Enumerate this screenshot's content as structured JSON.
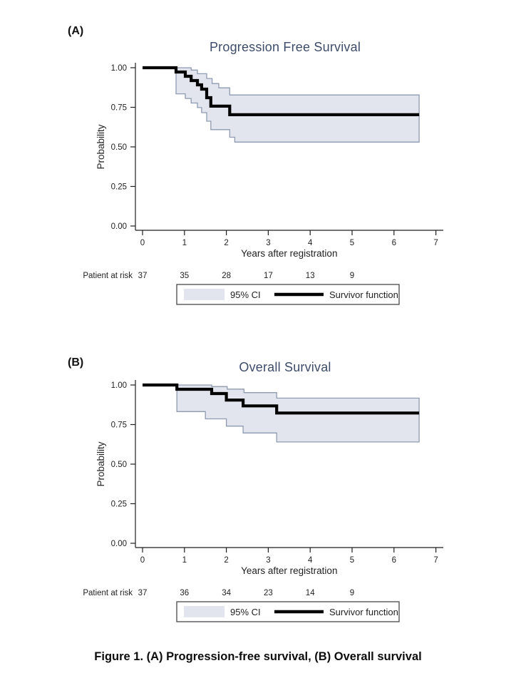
{
  "caption": "Figure 1. (A) Progression-free survival, (B) Overall survival",
  "colors": {
    "title_color": "#3e4c69",
    "band_fill": "#e2e5ed",
    "ci_line": "#8f9bb0",
    "survivor_line": "#000000",
    "axis_color": "#1f1f1f",
    "text_color": "#1f1f1f",
    "legend_border": "#3a3a3a"
  },
  "chart_data": [
    {
      "type": "line",
      "subtype": "kaplan-meier-step",
      "panel_label": "(A)",
      "title": "Progression Free Survival",
      "xlabel": "Years after registration",
      "ylabel": "Probability",
      "xlim": [
        0,
        7
      ],
      "ylim": [
        0,
        1
      ],
      "x_ticks": [
        0,
        1,
        2,
        3,
        4,
        5,
        6,
        7
      ],
      "y_ticks": [
        0,
        0.25,
        0.5,
        0.75,
        1
      ],
      "y_tick_labels": [
        "0.00",
        "0.25",
        "0.50",
        "0.75",
        "1.00"
      ],
      "end_time": 6.6,
      "grid": false,
      "legend": {
        "ci_label": "95% CI",
        "survivor_label": "Survivor function",
        "position": "below"
      },
      "risk_table": {
        "label": "Patient at risk",
        "times": [
          0,
          1,
          2,
          3,
          4,
          5
        ],
        "counts": [
          37,
          35,
          28,
          17,
          13,
          9
        ]
      },
      "series": [
        {
          "name": "Survivor function",
          "role": "survivor",
          "start": [
            0,
            1.0
          ],
          "drops": [
            [
              0.8,
              0.973
            ],
            [
              1.02,
              0.946
            ],
            [
              1.16,
              0.919
            ],
            [
              1.31,
              0.892
            ],
            [
              1.41,
              0.865
            ],
            [
              1.53,
              0.811
            ],
            [
              1.63,
              0.757
            ],
            [
              2.08,
              0.703
            ]
          ]
        },
        {
          "name": "95% CI upper",
          "role": "ci_upper",
          "start": [
            0.8,
            1.0
          ],
          "drops": [
            [
              1.16,
              0.985
            ],
            [
              1.31,
              0.962
            ],
            [
              1.53,
              0.932
            ],
            [
              1.66,
              0.9
            ],
            [
              1.82,
              0.873
            ],
            [
              2.08,
              0.828
            ]
          ]
        },
        {
          "name": "95% CI lower",
          "role": "ci_lower",
          "start": [
            0.8,
            0.835
          ],
          "drops": [
            [
              1.02,
              0.806
            ],
            [
              1.16,
              0.777
            ],
            [
              1.31,
              0.748
            ],
            [
              1.41,
              0.716
            ],
            [
              1.53,
              0.662
            ],
            [
              1.63,
              0.609
            ],
            [
              2.08,
              0.561
            ],
            [
              2.2,
              0.53
            ]
          ]
        }
      ]
    },
    {
      "type": "line",
      "subtype": "kaplan-meier-step",
      "panel_label": "(B)",
      "title": "Overall Survival",
      "xlabel": "Years after registration",
      "ylabel": "Probability",
      "xlim": [
        0,
        7
      ],
      "ylim": [
        0,
        1
      ],
      "x_ticks": [
        0,
        1,
        2,
        3,
        4,
        5,
        6,
        7
      ],
      "y_ticks": [
        0,
        0.25,
        0.5,
        0.75,
        1
      ],
      "y_tick_labels": [
        "0.00",
        "0.25",
        "0.50",
        "0.75",
        "1.00"
      ],
      "end_time": 6.6,
      "grid": false,
      "legend": {
        "ci_label": "95% CI",
        "survivor_label": "Survivor function",
        "position": "below"
      },
      "risk_table": {
        "label": "Patient at risk",
        "times": [
          0,
          1,
          2,
          3,
          4,
          5
        ],
        "counts": [
          37,
          36,
          34,
          23,
          14,
          9
        ]
      },
      "series": [
        {
          "name": "Survivor function",
          "role": "survivor",
          "start": [
            0,
            1.0
          ],
          "drops": [
            [
              0.82,
              0.973
            ],
            [
              1.65,
              0.946
            ],
            [
              2.0,
              0.905
            ],
            [
              2.4,
              0.868
            ],
            [
              3.2,
              0.823
            ]
          ]
        },
        {
          "name": "95% CI upper",
          "role": "ci_upper",
          "start": [
            0.82,
            1.0
          ],
          "drops": [
            [
              1.65,
              0.99
            ],
            [
              2.02,
              0.974
            ],
            [
              2.42,
              0.952
            ],
            [
              3.2,
              0.917
            ]
          ]
        },
        {
          "name": "95% CI lower",
          "role": "ci_lower",
          "start": [
            0.82,
            0.832
          ],
          "drops": [
            [
              1.5,
              0.786
            ],
            [
              2.0,
              0.74
            ],
            [
              2.4,
              0.697
            ],
            [
              3.2,
              0.64
            ]
          ]
        }
      ]
    }
  ]
}
